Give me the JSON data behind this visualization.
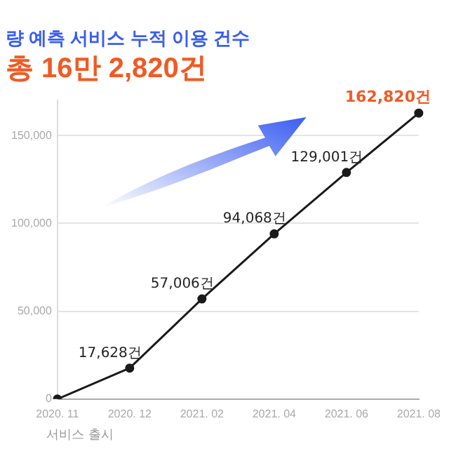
{
  "chart_data": {
    "type": "line",
    "title": "량 예측 서비스 누적 이용 건수",
    "subtitle": "총 16만 2,820건",
    "categories": [
      "2020. 11",
      "2020. 12",
      "2021. 02",
      "2021. 04",
      "2021. 06",
      "2021. 08"
    ],
    "series": [
      {
        "color": "#1a1a1a",
        "values": [
          0,
          17628,
          57006,
          94068,
          129001,
          162820
        ]
      }
    ],
    "value_labels": [
      null,
      "17,628건",
      "57,006건",
      "94,068건",
      "129,001건",
      "162,820건"
    ],
    "ylim": [
      0,
      170000
    ],
    "yticks": [
      0,
      {
        "value": 50000,
        "label": "50,000"
      },
      {
        "value": 100000,
        "label": "100,000"
      },
      {
        "value": 150000,
        "label": "150,000"
      }
    ],
    "annotations": [
      "서비스 출시"
    ],
    "grid": "y",
    "legend": false,
    "marker": "circle",
    "line_style": "solid"
  }
}
